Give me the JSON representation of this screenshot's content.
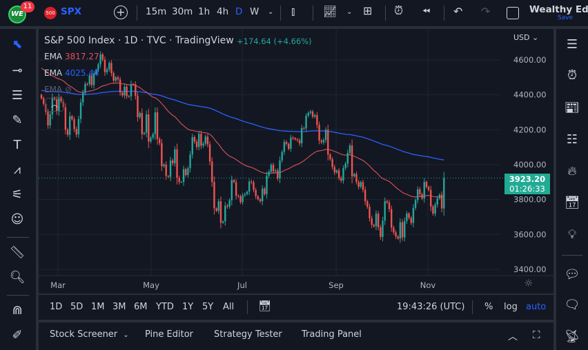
{
  "topbar": {
    "notification_count": "11",
    "logo_text": "WE",
    "symbol_badge": "500",
    "symbol": "SPX",
    "intervals": [
      "15m",
      "30m",
      "1h",
      "4h",
      "D",
      "W"
    ],
    "active_interval": "D",
    "layout_name": "Wealthy Educ",
    "save_label": "Save"
  },
  "legend": {
    "title": "S&P 500 Index · 1D · TVC · TradingView",
    "change": "+174.64 (+4.66%)",
    "ema1_label": "EMA",
    "ema1_value": "3817.27",
    "ema2_label": "EMA",
    "ema2_value": "4025.44",
    "ema3_label": "EMA"
  },
  "price_axis": {
    "currency": "USD",
    "current_price": "3923.20",
    "countdown": "01:26:33"
  },
  "colors": {
    "up": "#26a69a",
    "down": "#ef5350",
    "ema1": "#e0515a",
    "ema2": "#2962ff",
    "accent": "#2962ff",
    "bg": "#131722"
  },
  "bottom_toolbar": {
    "ranges": [
      "1D",
      "5D",
      "1M",
      "3M",
      "6M",
      "YTD",
      "1Y",
      "5Y",
      "All"
    ],
    "clock": "19:43:26 (UTC)",
    "percent": "%",
    "log": "log",
    "auto": "auto"
  },
  "bottom_panel": {
    "tabs": [
      "Stock Screener",
      "Pine Editor",
      "Strategy Tester",
      "Trading Panel"
    ]
  },
  "chart_data": {
    "type": "candlestick",
    "title": "S&P 500 Index · 1D · TVC · TradingView",
    "x_ticks": [
      "Mar",
      "May",
      "Jul",
      "Sep",
      "Nov"
    ],
    "y_ticks": [
      4600,
      4400,
      4200,
      4000,
      3800,
      3600,
      3400
    ],
    "ylim": [
      3340,
      4730
    ],
    "grid": true,
    "closes": [
      4380,
      4349,
      4304,
      4225,
      4288,
      4385,
      4374,
      4306,
      4386,
      4363,
      4329,
      4201,
      4171,
      4278,
      4260,
      4204,
      4173,
      4262,
      4357,
      4412,
      4463,
      4461,
      4512,
      4456,
      4520,
      4543,
      4575,
      4632,
      4602,
      4530,
      4546,
      4583,
      4525,
      4481,
      4500,
      4488,
      4413,
      4397,
      4447,
      4392,
      4391,
      4462,
      4460,
      4394,
      4272,
      4296,
      4175,
      4183,
      4288,
      4132,
      4155,
      4175,
      4300,
      4147,
      4123,
      3991,
      4001,
      3935,
      3930,
      4024,
      4008,
      4088,
      3924,
      3901,
      3901,
      3974,
      3941,
      3979,
      4058,
      4158,
      4132,
      4101,
      4177,
      4109,
      4121,
      4161,
      4116,
      4018,
      3901,
      3750,
      3735,
      3790,
      3667,
      3675,
      3765,
      3760,
      3796,
      3912,
      3900,
      3822,
      3819,
      3785,
      3825,
      3831,
      3845,
      3903,
      3899,
      3855,
      3819,
      3802,
      3790,
      3863,
      3831,
      3937,
      3960,
      3999,
      3962,
      3967,
      3921,
      4024,
      4073,
      4130,
      4119,
      4091,
      4155,
      4152,
      4145,
      4140,
      4122,
      4210,
      4208,
      4280,
      4297,
      4305,
      4275,
      4284,
      4228,
      4138,
      4128,
      4141,
      4200,
      4058,
      4031,
      3986,
      3955,
      3967,
      3924,
      3909,
      3980,
      4006,
      4067,
      4110,
      3933,
      3947,
      3901,
      3873,
      3900,
      3856,
      3790,
      3758,
      3693,
      3655,
      3647,
      3719,
      3641,
      3586,
      3679,
      3791,
      3783,
      3745,
      3640,
      3612,
      3589,
      3577,
      3670,
      3583,
      3677,
      3720,
      3695,
      3666,
      3752,
      3797,
      3859,
      3831,
      3807,
      3901,
      3872,
      3856,
      3760,
      3720,
      3771,
      3807,
      3828,
      3749,
      3923.2
    ],
    "series": [
      {
        "name": "EMA",
        "last": 3817.27
      },
      {
        "name": "EMA",
        "last": 4025.44
      }
    ]
  }
}
